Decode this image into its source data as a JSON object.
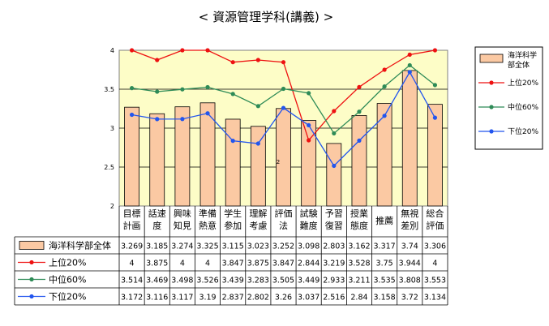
{
  "chart_data": {
    "type": "bar",
    "title": "< 資源管理学科(講義) >",
    "categories": [
      [
        "目標",
        "計画"
      ],
      [
        "話速",
        "度"
      ],
      [
        "興味",
        "知見"
      ],
      [
        "準備",
        "熱意"
      ],
      [
        "学生",
        "参加"
      ],
      [
        "理解",
        "考慮"
      ],
      [
        "評価",
        "法"
      ],
      [
        "試験",
        "難度"
      ],
      [
        "予習",
        "復習"
      ],
      [
        "授業",
        "態度"
      ],
      [
        "推薦"
      ],
      [
        "無視",
        "差別"
      ],
      [
        "総合",
        "評価"
      ]
    ],
    "ylim": [
      2,
      4
    ],
    "yticks": [
      "2",
      "2.5",
      "3",
      "3.5",
      "4"
    ],
    "grid": true,
    "legend_position": "right",
    "stray_label": "2",
    "series": [
      {
        "name": "海洋科学部全体",
        "type": "bar",
        "color": "#fbc9a3",
        "border": "#000000",
        "values": [
          3.269,
          3.185,
          3.274,
          3.325,
          3.115,
          3.023,
          3.252,
          3.098,
          2.803,
          3.162,
          3.317,
          3.74,
          3.306
        ],
        "labels": [
          "3.269",
          "3.185",
          "3.274",
          "3.325",
          "3.115",
          "3.023",
          "3.252",
          "3.098",
          "2.803",
          "3.162",
          "3.317",
          "3.74",
          "3.306"
        ]
      },
      {
        "name": "上位20%",
        "type": "line",
        "color": "#ee1111",
        "values": [
          4,
          3.875,
          4,
          4,
          3.847,
          3.875,
          3.847,
          2.844,
          3.219,
          3.528,
          3.75,
          3.944,
          4
        ],
        "labels": [
          "4",
          "3.875",
          "4",
          "4",
          "3.847",
          "3.875",
          "3.847",
          "2.844",
          "3.219",
          "3.528",
          "3.75",
          "3.944",
          "4"
        ]
      },
      {
        "name": "中位60%",
        "type": "line",
        "color": "#2e8b57",
        "values": [
          3.514,
          3.469,
          3.498,
          3.526,
          3.439,
          3.283,
          3.505,
          3.449,
          2.933,
          3.211,
          3.535,
          3.808,
          3.553
        ],
        "labels": [
          "3.514",
          "3.469",
          "3.498",
          "3.526",
          "3.439",
          "3.283",
          "3.505",
          "3.449",
          "2.933",
          "3.211",
          "3.535",
          "3.808",
          "3.553"
        ]
      },
      {
        "name": "下位20%",
        "type": "line",
        "color": "#2255ee",
        "values": [
          3.172,
          3.116,
          3.117,
          3.19,
          2.837,
          2.802,
          3.26,
          3.037,
          2.516,
          2.84,
          3.158,
          3.72,
          3.134
        ],
        "labels": [
          "3.172",
          "3.116",
          "3.117",
          "3.19",
          "2.837",
          "2.802",
          "3.26",
          "3.037",
          "2.516",
          "2.84",
          "3.158",
          "3.72",
          "3.134"
        ]
      }
    ],
    "legend": {
      "entries": [
        {
          "lines": [
            "海洋科学",
            "部全体"
          ]
        },
        {
          "lines": [
            "上位20%"
          ]
        },
        {
          "lines": [
            "中位60%"
          ]
        },
        {
          "lines": [
            "下位20%"
          ]
        }
      ]
    }
  }
}
